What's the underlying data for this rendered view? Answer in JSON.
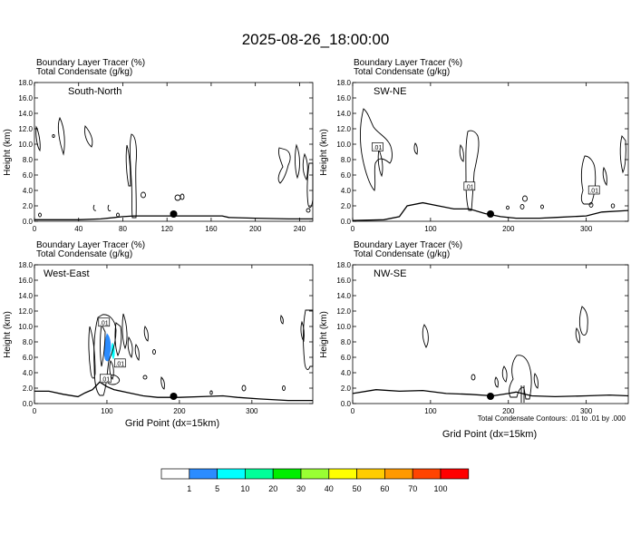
{
  "title": "2025-08-26_18:00:00",
  "panel_header": {
    "line1": "Boundary Layer Tracer   (%)",
    "line2": "Total Condensate   (g/kg)"
  },
  "ylabel": "Height (km)",
  "xlabel": "Grid Point (dx=15km)",
  "contour_note": "Total Condensate Contours: .01 to .01 by .000",
  "colorbar": {
    "labels": [
      "1",
      "5",
      "10",
      "20",
      "30",
      "40",
      "50",
      "60",
      "70",
      "100"
    ],
    "colors": [
      "#ffffff",
      "#2b8cff",
      "#00ffff",
      "#00ff99",
      "#00ee00",
      "#99ff33",
      "#ffff00",
      "#ffcc00",
      "#ff9900",
      "#ff4400",
      "#ff0000"
    ]
  },
  "chart_data": [
    {
      "type": "contour-cross-section",
      "section": "South-North",
      "ylim": [
        0,
        18
      ],
      "y_ticks": [
        "0.0",
        "2.0",
        "4.0",
        "6.0",
        "8.0",
        "10.0",
        "12.0",
        "14.0",
        "16.0",
        "18.0"
      ],
      "xlim": [
        0,
        252
      ],
      "x_ticks": [
        0,
        40,
        80,
        120,
        160,
        200,
        240
      ],
      "marker_x": 126,
      "contour_labels": [],
      "terrain": [
        [
          0,
          0.2
        ],
        [
          40,
          0.2
        ],
        [
          60,
          0.3
        ],
        [
          80,
          0.6
        ],
        [
          90,
          0.7
        ],
        [
          100,
          0.7
        ],
        [
          120,
          0.7
        ],
        [
          160,
          0.7
        ],
        [
          170,
          0.7
        ],
        [
          176,
          0.5
        ],
        [
          200,
          0.4
        ],
        [
          230,
          0.3
        ],
        [
          252,
          0.3
        ]
      ]
    },
    {
      "type": "contour-cross-section",
      "section": "SW-NE",
      "ylim": [
        0,
        18
      ],
      "y_ticks": [
        "0.0",
        "2.0",
        "4.0",
        "6.0",
        "8.0",
        "10.0",
        "12.0",
        "14.0",
        "16.0",
        "18.0"
      ],
      "xlim": [
        0,
        354
      ],
      "x_ticks": [
        0,
        100,
        200,
        300
      ],
      "marker_x": 177,
      "contour_labels": [
        {
          "x": 32,
          "y": 9.6,
          "text": ".01"
        },
        {
          "x": 150,
          "y": 4.5,
          "text": ".01"
        },
        {
          "x": 310,
          "y": 4.0,
          "text": ".01"
        }
      ],
      "terrain": [
        [
          0,
          0.1
        ],
        [
          40,
          0.2
        ],
        [
          60,
          0.6
        ],
        [
          70,
          2.0
        ],
        [
          90,
          2.4
        ],
        [
          110,
          2.0
        ],
        [
          130,
          1.6
        ],
        [
          150,
          1.6
        ],
        [
          170,
          1.0
        ],
        [
          190,
          0.6
        ],
        [
          210,
          0.4
        ],
        [
          240,
          0.4
        ],
        [
          260,
          0.5
        ],
        [
          300,
          0.7
        ],
        [
          320,
          1.2
        ],
        [
          354,
          1.4
        ]
      ]
    },
    {
      "type": "contour-cross-section",
      "section": "West-East",
      "ylim": [
        0,
        18
      ],
      "y_ticks": [
        "0.0",
        "2.0",
        "4.0",
        "6.0",
        "8.0",
        "10.0",
        "12.0",
        "14.0",
        "16.0",
        "18.0"
      ],
      "xlim": [
        0,
        384
      ],
      "x_ticks": [
        0,
        100,
        200,
        300
      ],
      "marker_x": 192,
      "contour_labels": [
        {
          "x": 96,
          "y": 10.5,
          "text": ".01"
        },
        {
          "x": 118,
          "y": 5.2,
          "text": ".01"
        },
        {
          "x": 98,
          "y": 3.2,
          "text": ".01"
        }
      ],
      "terrain": [
        [
          0,
          1.6
        ],
        [
          20,
          1.6
        ],
        [
          40,
          1.2
        ],
        [
          60,
          0.9
        ],
        [
          70,
          1.4
        ],
        [
          80,
          1.8
        ],
        [
          90,
          2.8
        ],
        [
          100,
          2.2
        ],
        [
          110,
          1.8
        ],
        [
          130,
          1.4
        ],
        [
          150,
          1.0
        ],
        [
          170,
          0.8
        ],
        [
          200,
          0.8
        ],
        [
          230,
          0.9
        ],
        [
          260,
          1.0
        ],
        [
          280,
          0.8
        ],
        [
          310,
          0.6
        ],
        [
          350,
          0.4
        ],
        [
          384,
          0.4
        ]
      ]
    },
    {
      "type": "contour-cross-section",
      "section": "NW-SE",
      "ylim": [
        0,
        18
      ],
      "y_ticks": [
        "0.0",
        "2.0",
        "4.0",
        "6.0",
        "8.0",
        "10.0",
        "12.0",
        "14.0",
        "16.0",
        "18.0"
      ],
      "xlim": [
        0,
        354
      ],
      "x_ticks": [
        0,
        100,
        200,
        300
      ],
      "marker_x": 177,
      "contour_labels": [],
      "terrain": [
        [
          0,
          1.3
        ],
        [
          30,
          1.8
        ],
        [
          60,
          1.6
        ],
        [
          90,
          1.7
        ],
        [
          120,
          1.3
        ],
        [
          150,
          1.2
        ],
        [
          180,
          1.0
        ],
        [
          200,
          1.3
        ],
        [
          210,
          1.5
        ],
        [
          230,
          1.0
        ],
        [
          260,
          0.9
        ],
        [
          300,
          1.0
        ],
        [
          330,
          1.1
        ],
        [
          354,
          1.0
        ]
      ]
    }
  ]
}
